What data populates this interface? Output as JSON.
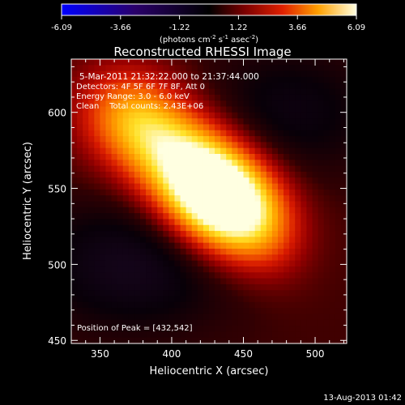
{
  "colorbar": {
    "ticks": [
      "-6.09",
      "-3.66",
      "-1.22",
      "1.22",
      "3.66",
      "6.09"
    ],
    "units_label": "(photons cm",
    "units_exp1": "-2",
    "units_mid": " s",
    "units_exp2": "-1",
    "units_end": " asec",
    "units_exp3": "-2",
    "units_close": ")"
  },
  "footer": {
    "timestamp": "13-Aug-2013 01:42"
  },
  "chart_data": {
    "type": "heatmap",
    "title": "Reconstructed RHESSI Image",
    "xlabel": "Heliocentric X (arcsec)",
    "ylabel": "Heliocentric Y (arcsec)",
    "xlim": [
      330,
      522
    ],
    "ylim": [
      448,
      635
    ],
    "xticks": [
      350,
      400,
      450,
      500
    ],
    "yticks": [
      450,
      500,
      550,
      600
    ],
    "zrange": [
      -6.09,
      6.09
    ],
    "grid": false,
    "annotations": [
      "5-Mar-2011 21:32:22.000 to 21:37:44.000",
      "Detectors: 4F 5F 6F 7F 8F, Att 0",
      "Energy Range: 3.0 - 6.0 keV",
      "Clean    Total counts: 2.43E+06"
    ],
    "peak_label": "Position of Peak = [432,542]",
    "peak": [
      432,
      542
    ],
    "sources": [
      {
        "x": 432,
        "y": 542,
        "sx": 30,
        "sy": 24,
        "angle": -35,
        "amp": 6.09
      },
      {
        "x": 405,
        "y": 572,
        "sx": 40,
        "sy": 24,
        "angle": -30,
        "amp": 3.6
      },
      {
        "x": 372,
        "y": 598,
        "sx": 26,
        "sy": 22,
        "angle": -20,
        "amp": 2.2
      },
      {
        "x": 462,
        "y": 525,
        "sx": 26,
        "sy": 20,
        "angle": -55,
        "amp": 1.6
      }
    ],
    "negative_lobes": [
      {
        "x": 375,
        "y": 500,
        "sx": 50,
        "sy": 30,
        "amp": -2.0
      },
      {
        "x": 480,
        "y": 600,
        "sx": 45,
        "sy": 30,
        "amp": -1.5
      }
    ]
  }
}
